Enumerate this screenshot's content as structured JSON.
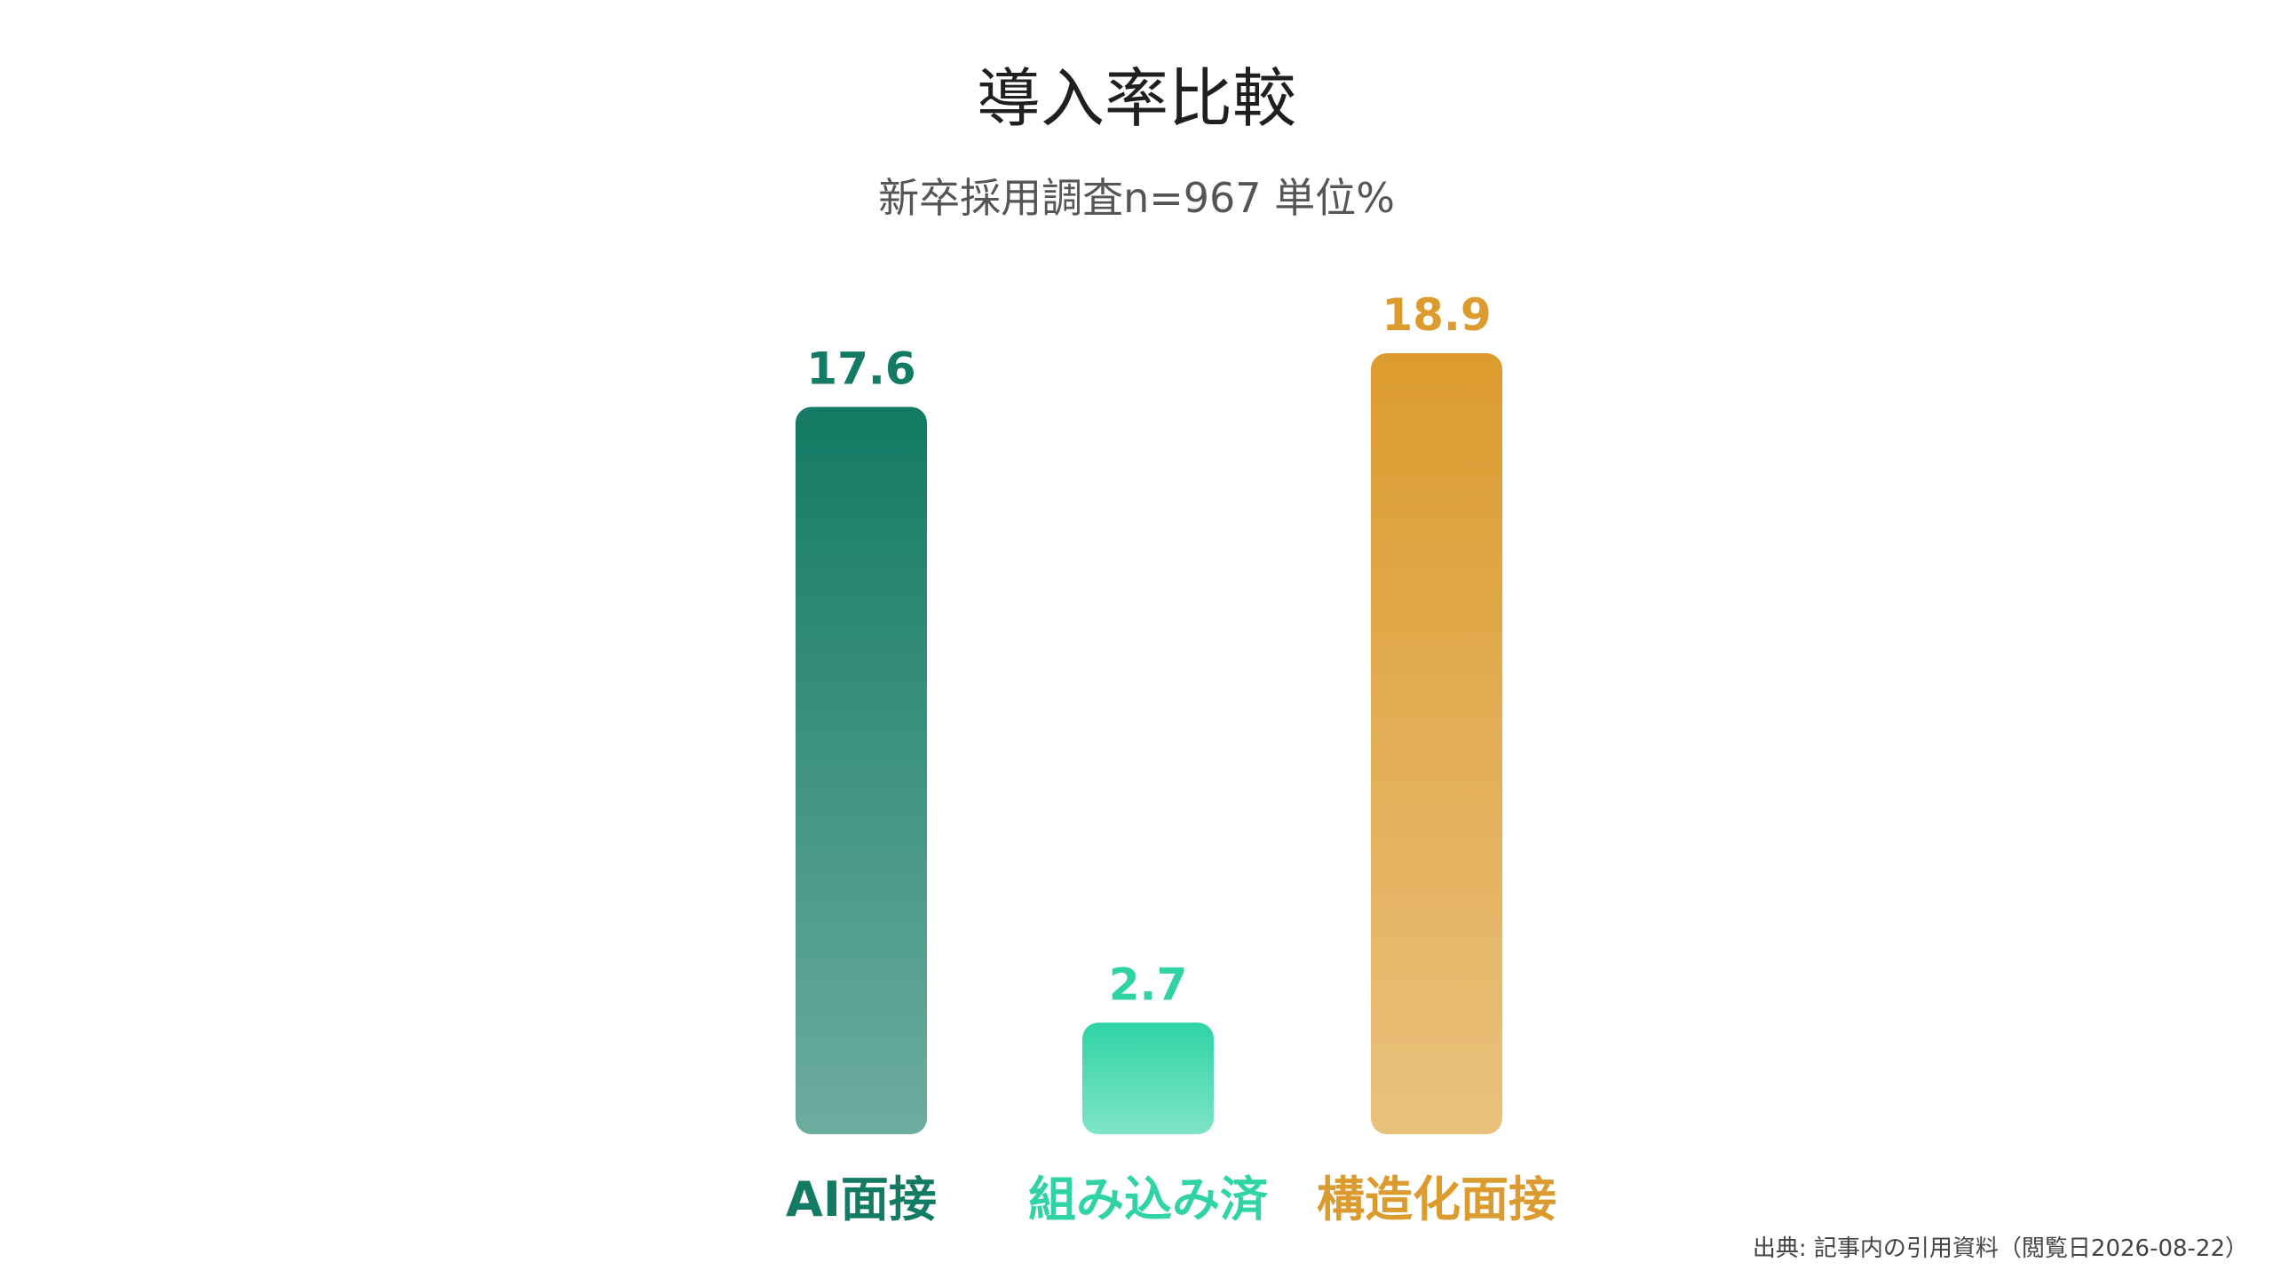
{
  "chart_data": {
    "type": "bar",
    "title": "導入率比較",
    "subtitle": "新卒採用調査n=967 単位%",
    "categories": [
      "AI面接",
      "組み込み済",
      "構造化面接"
    ],
    "values": [
      17.6,
      2.7,
      18.9
    ],
    "value_labels": [
      "17.6",
      "2.7",
      "18.9"
    ],
    "colors": [
      "#137a64",
      "#2fd3a4",
      "#dc9b2e"
    ],
    "xlabel": "",
    "ylabel": "",
    "grid": false,
    "legend": "none"
  },
  "source": "出典: 記事内の引用資料（閲覧日2026-08-22）"
}
